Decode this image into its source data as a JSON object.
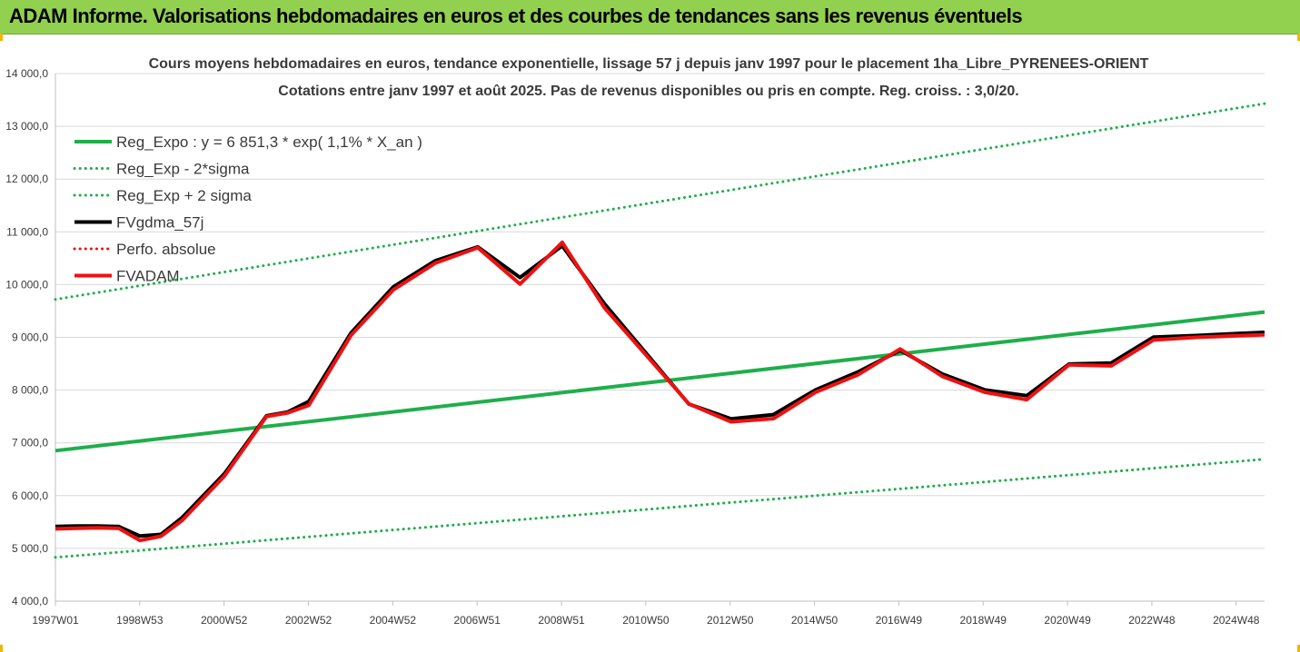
{
  "header": {
    "title": "ADAM Informe. Valorisations hebdomadaires en euros et des courbes de tendances sans les revenus éventuels"
  },
  "colors": {
    "header_bg": "#92d050",
    "accent_corner": "#f2b500",
    "trend_green": "#1fae4b",
    "fvgdma_black": "#000000",
    "fvadam_red": "#ee1111",
    "grid": "#d9d9d9"
  },
  "chart_data": {
    "type": "line",
    "title_line1": "Cours moyens hebdomadaires en euros, tendance exponentielle, lissage 57 j depuis janv 1997 pour le placement 1ha_Libre_PYRENEES-ORIENT",
    "title_line2": "Cotations entre janv 1997 et août 2025.  Pas de revenus disponibles ou pris en compte. Reg. croiss. : 3,0/20.",
    "x_tick_labels": [
      "1997W01",
      "1998W53",
      "2000W52",
      "2002W52",
      "2004W52",
      "2006W51",
      "2008W51",
      "2010W50",
      "2012W50",
      "2014W50",
      "2016W49",
      "2018W49",
      "2020W49",
      "2022W48",
      "2024W48"
    ],
    "x_range_years": [
      1997.0,
      2025.63
    ],
    "ylim": [
      4000,
      14000
    ],
    "y_tick_values": [
      4000,
      5000,
      6000,
      7000,
      8000,
      9000,
      10000,
      11000,
      12000,
      13000,
      14000
    ],
    "y_tick_labels": [
      "4 000,0",
      "5 000,0",
      "6 000,0",
      "7 000,0",
      "8 000,0",
      "9 000,0",
      "10 000,0",
      "11 000,0",
      "12 000,0",
      "13 000,0",
      "14 000,0"
    ],
    "grid": "horizontal",
    "legend_position": "top-left",
    "legend": [
      {
        "key": "reg_expo",
        "label": "Reg_Expo : y = 6 851,3 * exp( 1,1% *  X_an )",
        "color": "#1fae4b",
        "dash": "solid",
        "width": 4
      },
      {
        "key": "reg_minus",
        "label": "Reg_Exp - 2*sigma",
        "color": "#1fae4b",
        "dash": "dotted",
        "width": 3
      },
      {
        "key": "reg_plus",
        "label": "Reg_Exp + 2 sigma",
        "color": "#1fae4b",
        "dash": "dotted",
        "width": 3
      },
      {
        "key": "fvgdma",
        "label": "FVgdma_57j",
        "color": "#000000",
        "dash": "solid",
        "width": 4
      },
      {
        "key": "perfo",
        "label": "Perfo. absolue",
        "color": "#ee1111",
        "dash": "dotted",
        "width": 3
      },
      {
        "key": "fvadam",
        "label": "FVADAM",
        "color": "#ee1111",
        "dash": "solid",
        "width": 4
      }
    ],
    "series": [
      {
        "key": "reg_expo",
        "name": "Reg_Expo : y = 6 851,3 * exp( 1,1% *  X_an )",
        "x": [
          1997.0,
          2025.63
        ],
        "y": [
          6851.3,
          9480
        ]
      },
      {
        "key": "reg_minus",
        "name": "Reg_Exp - 2*sigma",
        "x": [
          1997.0,
          2025.63
        ],
        "y": [
          4830,
          6690
        ]
      },
      {
        "key": "reg_plus",
        "name": "Reg_Exp + 2 sigma",
        "x": [
          1997.0,
          2025.63
        ],
        "y": [
          9720,
          13430
        ]
      },
      {
        "key": "fvgdma",
        "name": "FVgdma_57j",
        "x": [
          1997.0,
          1997.5,
          1998.0,
          1998.5,
          1999.0,
          1999.5,
          2000.0,
          2001.0,
          2002.0,
          2002.5,
          2003.0,
          2004.0,
          2005.0,
          2006.0,
          2007.0,
          2008.0,
          2009.0,
          2010.0,
          2011.0,
          2012.0,
          2013.0,
          2014.0,
          2015.0,
          2016.0,
          2017.0,
          2018.0,
          2019.0,
          2020.0,
          2021.0,
          2022.0,
          2023.0,
          2024.0,
          2025.0,
          2025.63
        ],
        "y": [
          5380,
          5390,
          5390,
          5380,
          5200,
          5230,
          5550,
          6380,
          7480,
          7550,
          7750,
          9050,
          9920,
          10420,
          10680,
          10100,
          10700,
          9600,
          8650,
          7700,
          7420,
          7500,
          7970,
          8310,
          8720,
          8270,
          7970,
          7860,
          8460,
          8480,
          8970,
          9000,
          9040,
          9060
        ]
      },
      {
        "key": "fvadam",
        "name": "FVADAM",
        "x": [
          1997.0,
          1997.5,
          1998.0,
          1998.5,
          1999.0,
          1999.5,
          2000.0,
          2001.0,
          2002.0,
          2002.5,
          2003.0,
          2004.0,
          2005.0,
          2006.0,
          2007.0,
          2008.0,
          2009.0,
          2010.0,
          2011.0,
          2012.0,
          2013.0,
          2014.0,
          2015.0,
          2016.0,
          2017.0,
          2018.0,
          2019.0,
          2020.0,
          2021.0,
          2022.0,
          2023.0,
          2024.0,
          2025.0,
          2025.63
        ],
        "y": [
          5370,
          5380,
          5390,
          5380,
          5150,
          5230,
          5530,
          6370,
          7500,
          7570,
          7710,
          9040,
          9900,
          10410,
          10700,
          10010,
          10800,
          9560,
          8650,
          7740,
          7400,
          7460,
          7960,
          8290,
          8780,
          8260,
          7960,
          7820,
          8480,
          8460,
          8950,
          9000,
          9030,
          9050
        ]
      }
    ]
  }
}
